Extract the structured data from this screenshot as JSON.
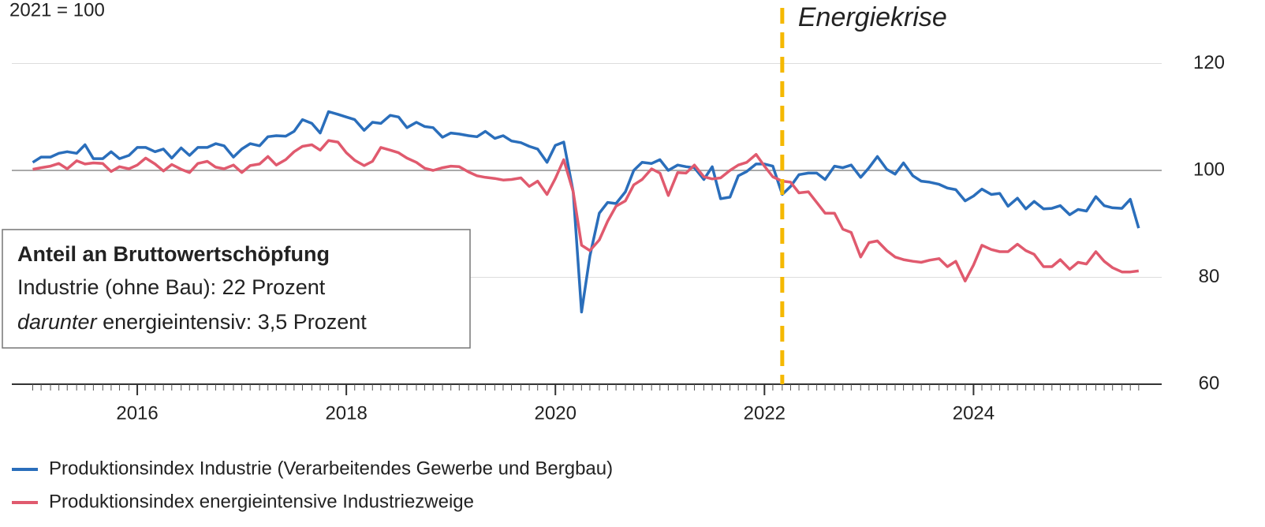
{
  "chart_data": {
    "type": "line",
    "y_label": "2021 = 100",
    "x": [
      2015,
      2015.08,
      2015.17,
      2015.25,
      2015.33,
      2015.42,
      2015.5,
      2015.58,
      2015.67,
      2015.75,
      2015.83,
      2015.92,
      2016,
      2016.08,
      2016.17,
      2016.25,
      2016.33,
      2016.42,
      2016.5,
      2016.58,
      2016.67,
      2016.75,
      2016.83,
      2016.92,
      2017,
      2017.08,
      2017.17,
      2017.25,
      2017.33,
      2017.42,
      2017.5,
      2017.58,
      2017.67,
      2017.75,
      2017.83,
      2017.92,
      2018,
      2018.08,
      2018.17,
      2018.25,
      2018.33,
      2018.42,
      2018.5,
      2018.58,
      2018.67,
      2018.75,
      2018.83,
      2018.92,
      2019,
      2019.08,
      2019.17,
      2019.25,
      2019.33,
      2019.42,
      2019.5,
      2019.58,
      2019.67,
      2019.75,
      2019.83,
      2019.92,
      2020,
      2020.08,
      2020.17,
      2020.25,
      2020.33,
      2020.42,
      2020.5,
      2020.58,
      2020.67,
      2020.75,
      2020.83,
      2020.92,
      2021,
      2021.08,
      2021.17,
      2021.25,
      2021.33,
      2021.42,
      2021.5,
      2021.58,
      2021.67,
      2021.75,
      2021.83,
      2021.92,
      2022,
      2022.08,
      2022.17,
      2022.25,
      2022.33,
      2022.42,
      2022.5,
      2022.58,
      2022.67,
      2022.75,
      2022.83,
      2022.92,
      2023,
      2023.08,
      2023.17,
      2023.25,
      2023.33,
      2023.42,
      2023.5,
      2023.58,
      2023.67,
      2023.75,
      2023.83,
      2023.92,
      2024,
      2024.08,
      2024.17,
      2024.25,
      2024.33,
      2024.42,
      2024.5,
      2024.58,
      2024.67,
      2024.75,
      2024.83,
      2024.92,
      2025,
      2025.08,
      2025.17,
      2025.25,
      2025.33,
      2025.42,
      2025.5,
      2025.58
    ],
    "series": [
      {
        "name": "Produktionsindex Industrie (Verarbeitendes Gewerbe und Bergbau)",
        "color": "#2a6ebb",
        "values": [
          101.5,
          102.5,
          102.5,
          103.2,
          103.5,
          103.2,
          104.8,
          102.2,
          102.2,
          103.5,
          102.2,
          102.8,
          104.3,
          104.3,
          103.5,
          104,
          102.3,
          104.2,
          102.8,
          104.3,
          104.3,
          105,
          104.6,
          102.5,
          104,
          105,
          104.6,
          106.3,
          106.5,
          106.4,
          107.3,
          109.5,
          108.8,
          107,
          111,
          110.5,
          110,
          109.5,
          107.5,
          109,
          108.8,
          110.3,
          110,
          108,
          109,
          108.2,
          108,
          106.2,
          107,
          106.8,
          106.5,
          106.3,
          107.3,
          106,
          106.5,
          105.5,
          105.2,
          104.5,
          104,
          101.5,
          104.7,
          105.3,
          96,
          73.5,
          84,
          92,
          94,
          93.8,
          96,
          100,
          101.5,
          101.3,
          102,
          100,
          101,
          100.7,
          100.5,
          98.3,
          100.7,
          94.7,
          95,
          99,
          99.8,
          101.2,
          101.2,
          100.8,
          95.5,
          97,
          99.2,
          99.5,
          99.5,
          98.3,
          100.8,
          100.5,
          101,
          98.7,
          100.5,
          102.6,
          100.2,
          99.3,
          101.4,
          99,
          98,
          97.8,
          97.4,
          96.7,
          96.4,
          94.3,
          95.2,
          96.5,
          95.5,
          95.7,
          93.3,
          94.8,
          92.8,
          94.2,
          92.8,
          92.9,
          93.4,
          91.7,
          92.7,
          92.4,
          95.1,
          93.4,
          93,
          92.9,
          94.6,
          89.2
        ]
      },
      {
        "name": "Produktionsindex energieintensive Industriezweige",
        "color": "#e05a6e",
        "values": [
          100.2,
          100.5,
          100.8,
          101.3,
          100.3,
          101.8,
          101.2,
          101.4,
          101.3,
          99.8,
          100.7,
          100.3,
          101,
          102.3,
          101.2,
          99.9,
          101.1,
          100.2,
          99.6,
          101.3,
          101.7,
          100.6,
          100.3,
          101,
          99.6,
          100.9,
          101.2,
          102.6,
          101,
          102,
          103.5,
          104.5,
          104.8,
          103.8,
          105.6,
          105.3,
          103.3,
          101.9,
          100.9,
          101.7,
          104.3,
          103.8,
          103.3,
          102.3,
          101.5,
          100.4,
          100,
          100.5,
          100.8,
          100.7,
          99.7,
          99,
          98.7,
          98.5,
          98.2,
          98.3,
          98.6,
          97,
          98,
          95.5,
          98.5,
          102,
          96,
          86,
          85,
          87,
          90.5,
          93.3,
          94.3,
          97.3,
          98.3,
          100.3,
          99.5,
          95.3,
          99.6,
          99.5,
          101,
          98.8,
          98.4,
          98.6,
          100,
          101,
          101.5,
          103,
          100.8,
          98.8,
          98,
          97.8,
          95.8,
          96,
          94,
          92,
          92,
          89,
          88.4,
          83.8,
          86.5,
          86.8,
          85,
          83.8,
          83.3,
          83,
          82.8,
          83.2,
          83.5,
          82,
          83,
          79.3,
          82.3,
          86,
          85.2,
          84.8,
          84.8,
          86.2,
          85,
          84.3,
          82,
          82,
          83.3,
          81.5,
          82.8,
          82.5,
          84.8,
          83,
          81.8,
          81,
          81,
          81.2
        ]
      }
    ],
    "xlim": [
      2014.8,
      2025.8
    ],
    "xticks": [
      2016,
      2018,
      2020,
      2022,
      2024
    ],
    "ylim": [
      60,
      130
    ],
    "yticks": [
      60,
      80,
      100,
      120
    ],
    "grid": true,
    "reference_line": 100,
    "annotation": {
      "text": "Energiekrise",
      "x": 2022.17,
      "color": "#f5b800"
    },
    "text_box": {
      "title": "Anteil an Bruttowertschöpfung",
      "line": "Industrie (ohne Bau): 22 Prozent",
      "italic": "darunter",
      "rest": " energieintensiv: 3,5 Prozent"
    },
    "legend": "bottom"
  }
}
